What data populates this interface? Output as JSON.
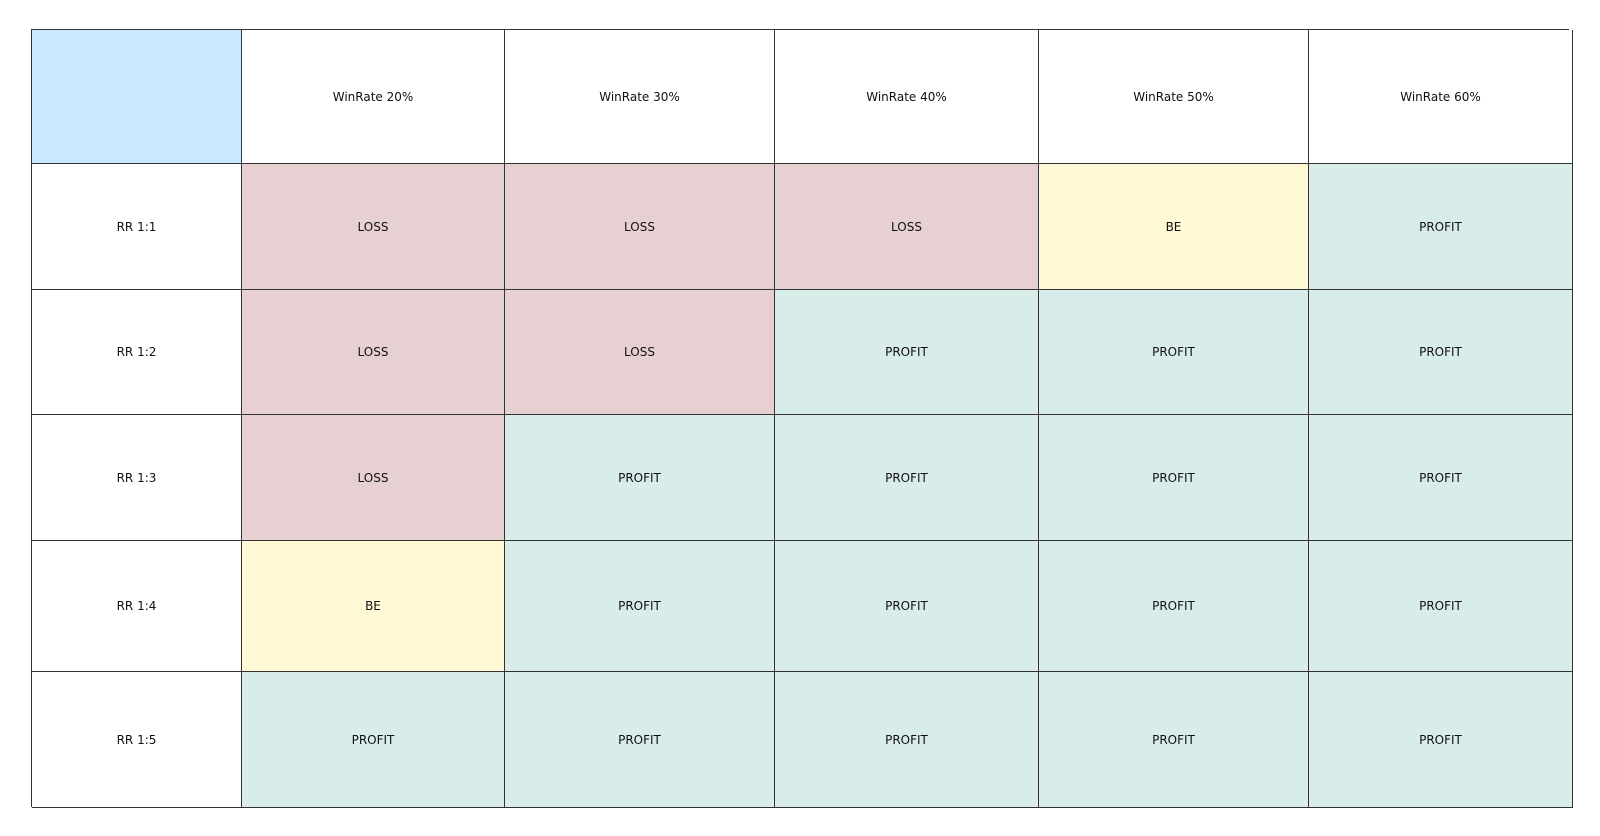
{
  "colors": {
    "corner": "#cce8ff",
    "loss": "#e6d0d2",
    "be": "#fff9d6",
    "profit": "#d8ece9",
    "border": "#333333"
  },
  "columns": [
    "WinRate 20%",
    "WinRate 30%",
    "WinRate 40%",
    "WinRate 50%",
    "WinRate 60%"
  ],
  "rows": [
    {
      "label": "RR 1:1",
      "cells": [
        "LOSS",
        "LOSS",
        "LOSS",
        "BE",
        "PROFIT"
      ]
    },
    {
      "label": "RR 1:2",
      "cells": [
        "LOSS",
        "LOSS",
        "PROFIT",
        "PROFIT",
        "PROFIT"
      ]
    },
    {
      "label": "RR 1:3",
      "cells": [
        "LOSS",
        "PROFIT",
        "PROFIT",
        "PROFIT",
        "PROFIT"
      ]
    },
    {
      "label": "RR 1:4",
      "cells": [
        "BE",
        "PROFIT",
        "PROFIT",
        "PROFIT",
        "PROFIT"
      ]
    },
    {
      "label": "RR 1:5",
      "cells": [
        "PROFIT",
        "PROFIT",
        "PROFIT",
        "PROFIT",
        "PROFIT"
      ]
    }
  ]
}
